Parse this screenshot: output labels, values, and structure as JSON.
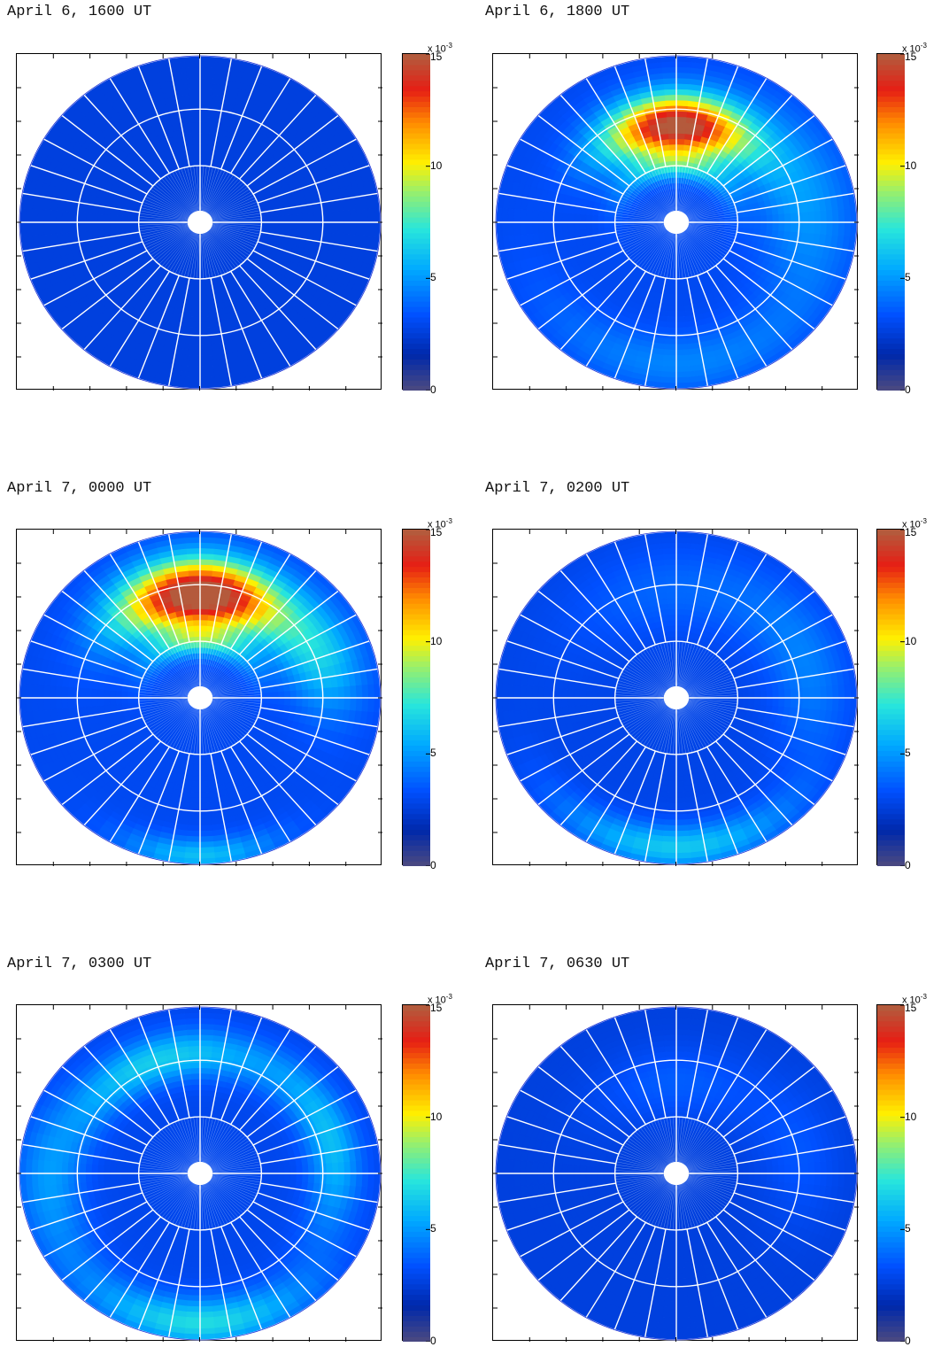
{
  "figure": {
    "colorbar": {
      "ticks": [
        "0",
        "5",
        "10",
        "15"
      ],
      "tick_values": [
        0,
        5,
        10,
        15
      ],
      "multiplier_prefix": "x 10",
      "multiplier_exponent": "-3",
      "colormap": "jet",
      "range": [
        0,
        15
      ]
    }
  },
  "panels": [
    {
      "title": "April 6, 1600 UT"
    },
    {
      "title": "April 6, 1800 UT"
    },
    {
      "title": "April 7, 0000 UT"
    },
    {
      "title": "April 7, 0200 UT"
    },
    {
      "title": "April 7, 0300 UT"
    },
    {
      "title": "April 7, 0630 UT"
    }
  ],
  "chart_data": [
    {
      "type": "heatmap",
      "title": "April 6, 1600 UT",
      "projection": "polar",
      "units_multiplier": "x 10^-3",
      "clim": [
        0,
        15
      ],
      "background": 2.6,
      "blobs": []
    },
    {
      "type": "heatmap",
      "title": "April 6, 1800 UT",
      "projection": "polar",
      "units_multiplier": "x 10^-3",
      "clim": [
        0,
        15
      ],
      "background": 3.0,
      "blobs": [
        {
          "angle_deg": 90,
          "radius_frac": 0.58,
          "sigma_r": 0.13,
          "sigma_a_deg": 28,
          "peak": 12.5
        },
        {
          "angle_deg": 90,
          "radius_frac": 0.35,
          "sigma_r": 0.06,
          "sigma_a_deg": 45,
          "peak": 3.0
        },
        {
          "angle_deg": 15,
          "radius_frac": 0.72,
          "sigma_r": 0.18,
          "sigma_a_deg": 35,
          "peak": 2.0
        },
        {
          "angle_deg": 270,
          "radius_frac": 0.85,
          "sigma_r": 0.12,
          "sigma_a_deg": 40,
          "peak": 1.5
        }
      ]
    },
    {
      "type": "heatmap",
      "title": "April 7, 0000 UT",
      "projection": "polar",
      "units_multiplier": "x 10^-3",
      "clim": [
        0,
        15
      ],
      "background": 3.0,
      "blobs": [
        {
          "angle_deg": 90,
          "radius_frac": 0.62,
          "sigma_r": 0.15,
          "sigma_a_deg": 30,
          "peak": 13.5
        },
        {
          "angle_deg": 90,
          "radius_frac": 0.35,
          "sigma_r": 0.06,
          "sigma_a_deg": 40,
          "peak": 3.5
        },
        {
          "angle_deg": 20,
          "radius_frac": 0.72,
          "sigma_r": 0.15,
          "sigma_a_deg": 20,
          "peak": 3.0
        },
        {
          "angle_deg": 270,
          "radius_frac": 0.95,
          "sigma_r": 0.07,
          "sigma_a_deg": 18,
          "peak": 3.0
        }
      ]
    },
    {
      "type": "heatmap",
      "title": "April 7, 0200 UT",
      "projection": "polar",
      "units_multiplier": "x 10^-3",
      "clim": [
        0,
        15
      ],
      "background": 2.8,
      "blobs": [
        {
          "angle_deg": 270,
          "radius_frac": 0.9,
          "sigma_r": 0.09,
          "sigma_a_deg": 30,
          "peak": 3.5
        },
        {
          "angle_deg": 15,
          "radius_frac": 0.75,
          "sigma_r": 0.15,
          "sigma_a_deg": 30,
          "peak": 1.5
        },
        {
          "angle_deg": 90,
          "radius_frac": 0.65,
          "sigma_r": 0.18,
          "sigma_a_deg": 40,
          "peak": 1.0
        }
      ]
    },
    {
      "type": "heatmap",
      "title": "April 7, 0300 UT",
      "projection": "polar",
      "units_multiplier": "x 10^-3",
      "clim": [
        0,
        15
      ],
      "background": 2.9,
      "blobs": [
        {
          "angle_deg": 110,
          "radius_frac": 0.72,
          "sigma_r": 0.1,
          "sigma_a_deg": 35,
          "peak": 3.5
        },
        {
          "angle_deg": 15,
          "radius_frac": 0.75,
          "sigma_r": 0.1,
          "sigma_a_deg": 30,
          "peak": 3.0
        },
        {
          "angle_deg": 185,
          "radius_frac": 0.85,
          "sigma_r": 0.12,
          "sigma_a_deg": 25,
          "peak": 2.0
        },
        {
          "angle_deg": 270,
          "radius_frac": 0.9,
          "sigma_r": 0.1,
          "sigma_a_deg": 28,
          "peak": 4.0
        }
      ]
    },
    {
      "type": "heatmap",
      "title": "April 7, 0630 UT",
      "projection": "polar",
      "units_multiplier": "x 10^-3",
      "clim": [
        0,
        15
      ],
      "background": 2.6,
      "blobs": [
        {
          "angle_deg": 90,
          "radius_frac": 0.55,
          "sigma_r": 0.15,
          "sigma_a_deg": 35,
          "peak": 1.0
        },
        {
          "angle_deg": 10,
          "radius_frac": 0.7,
          "sigma_r": 0.15,
          "sigma_a_deg": 25,
          "peak": 0.8
        }
      ]
    }
  ]
}
